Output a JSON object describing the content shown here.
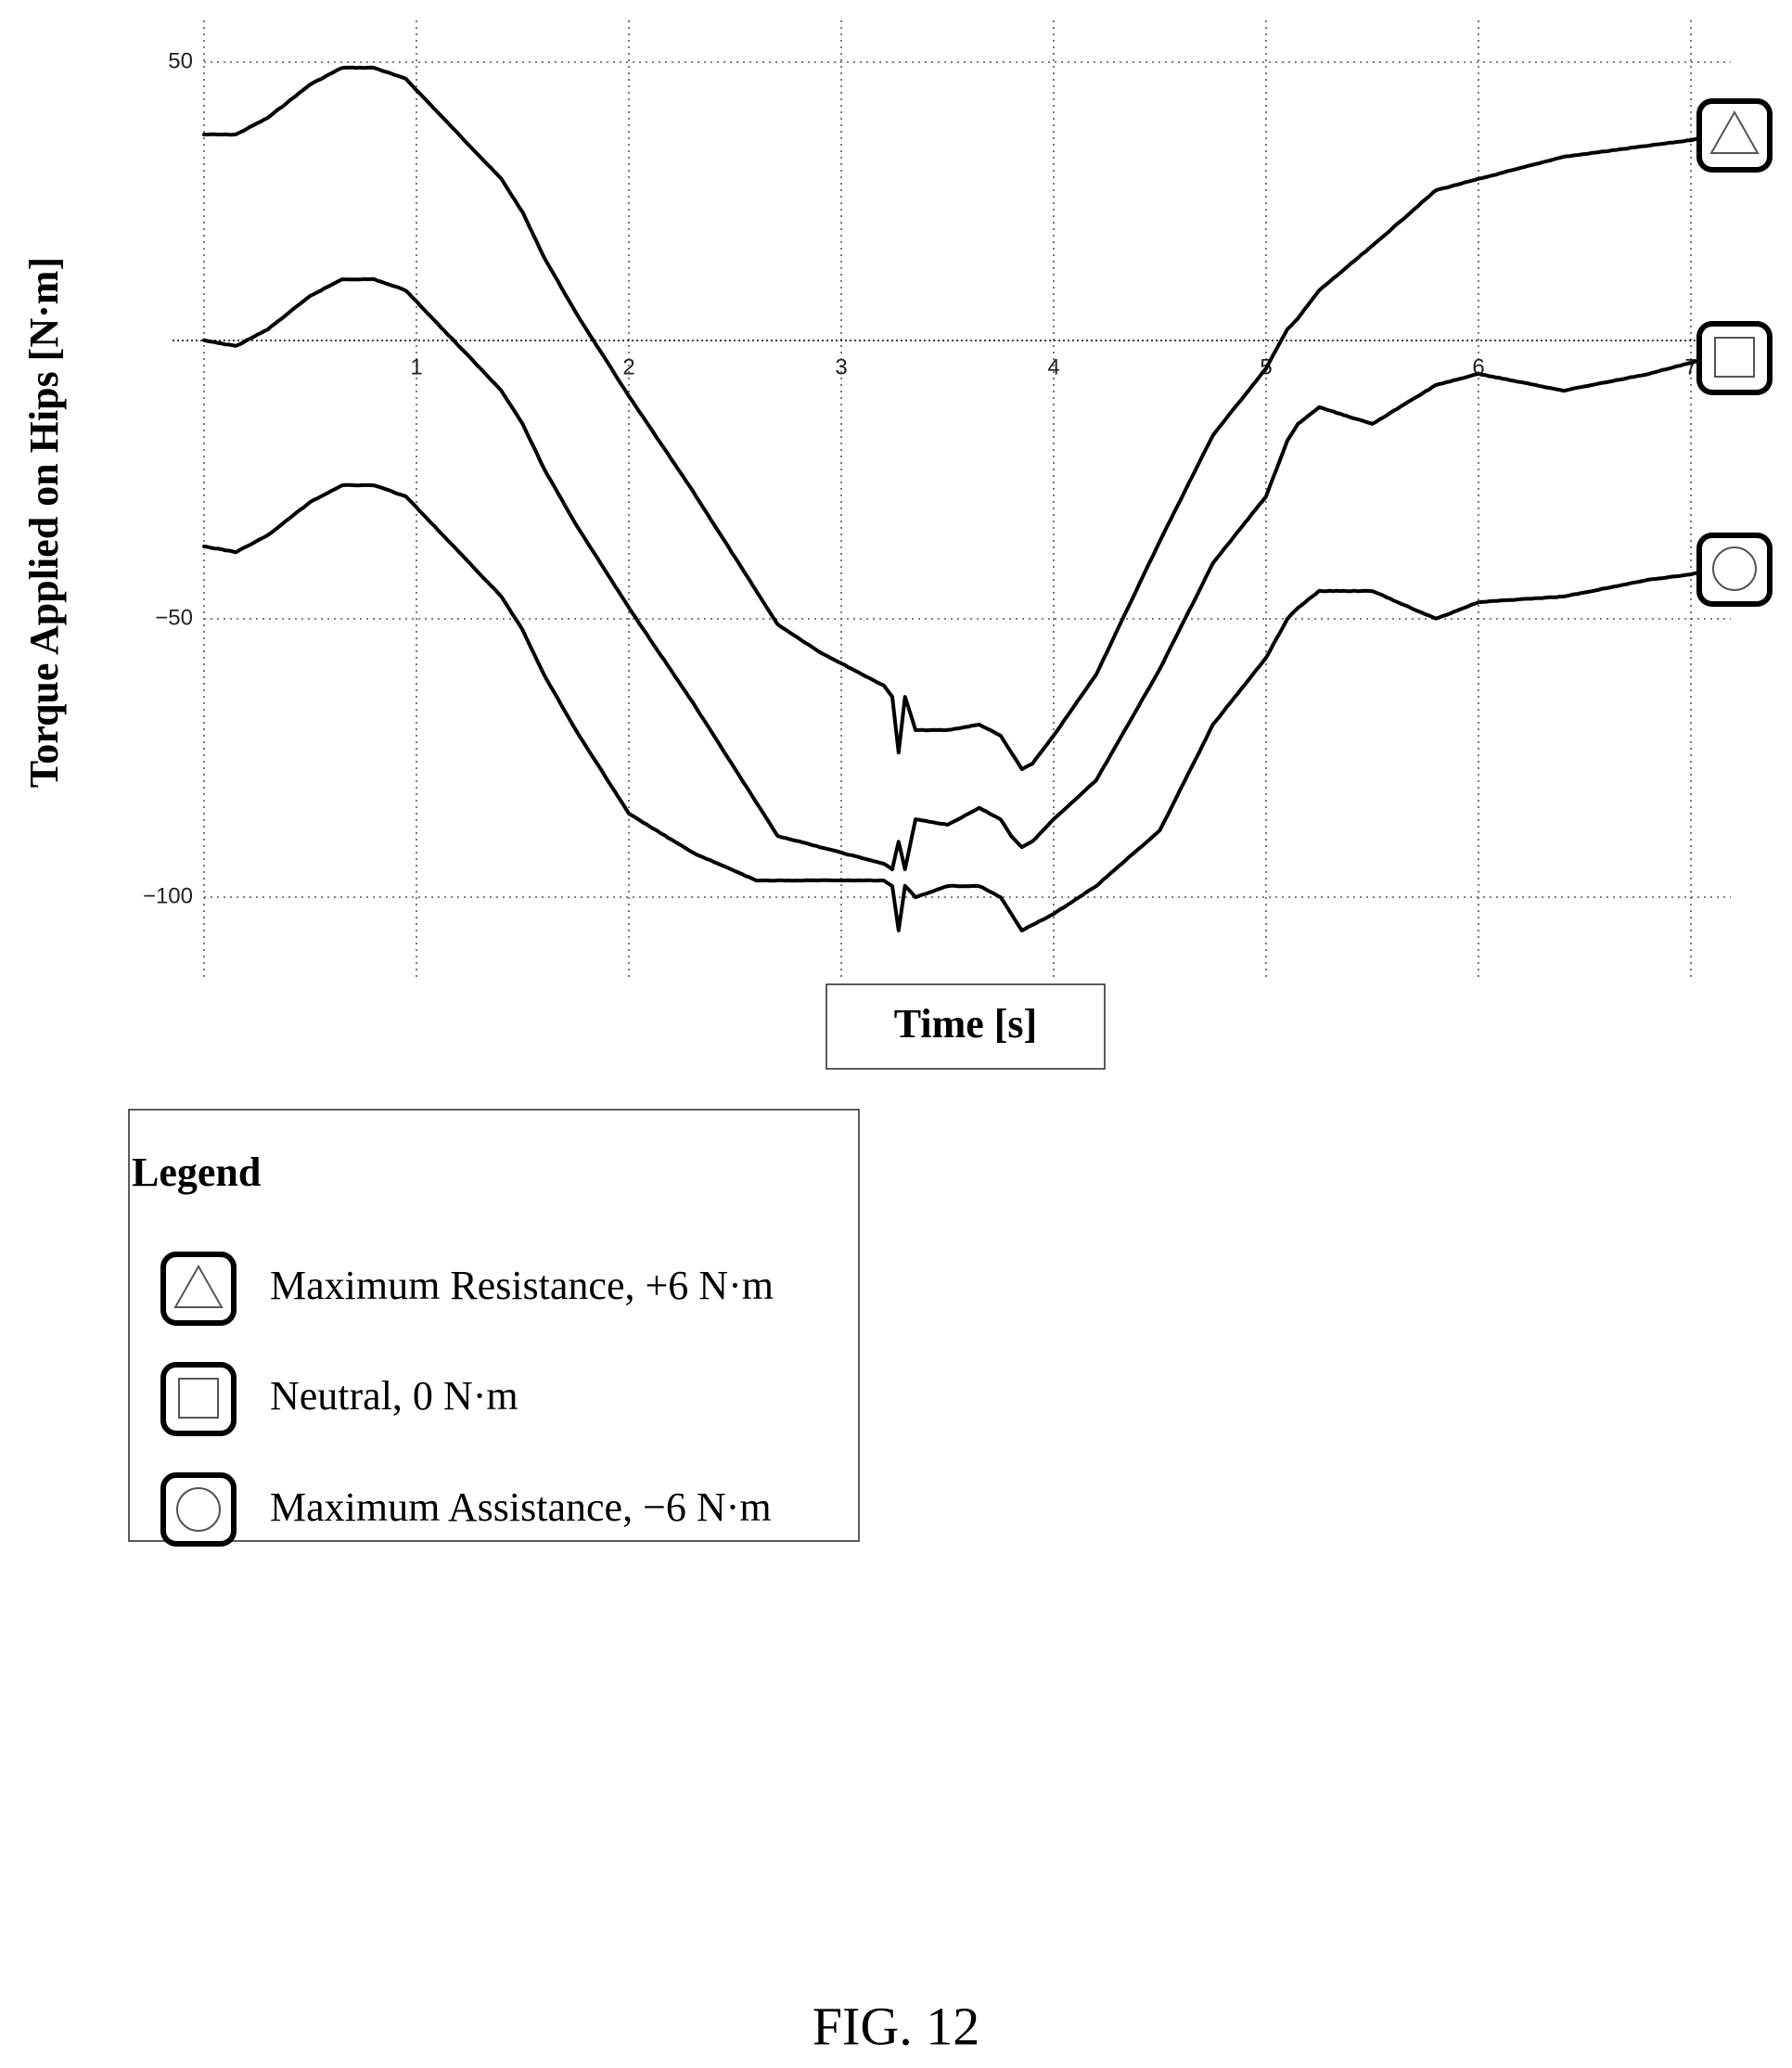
{
  "chart_data": {
    "type": "line",
    "ylabel": "Torque Applied on Hips [N·m]",
    "xlabel": "Time [s]",
    "x_ticks": [
      "1",
      "2",
      "3",
      "4",
      "5",
      "6",
      "7"
    ],
    "y_ticks": [
      "50",
      "−50",
      "−100"
    ],
    "xlim": [
      0,
      7.2
    ],
    "ylim": [
      -114,
      54
    ],
    "grid": true,
    "legend_placement": "bottom-left",
    "series": [
      {
        "name": "Maximum Resistance, +6 N·m",
        "marker": "triangle",
        "x": [
          0,
          0.15,
          0.3,
          0.5,
          0.65,
          0.8,
          0.95,
          1.05,
          1.2,
          1.4,
          1.5,
          1.6,
          1.75,
          2.0,
          2.3,
          2.6,
          2.7,
          2.9,
          3.1,
          3.2,
          3.24,
          3.27,
          3.3,
          3.35,
          3.5,
          3.65,
          3.75,
          3.8,
          3.85,
          3.9,
          4.0,
          4.2,
          4.5,
          4.75,
          5.0,
          5.1,
          5.15,
          5.25,
          5.5,
          5.8,
          6.0,
          6.4,
          6.8,
          7.0,
          7.1
        ],
        "y": [
          37,
          37,
          40,
          46,
          49,
          49,
          47,
          43,
          37,
          29,
          23,
          15,
          5,
          -10,
          -27,
          -45,
          -51,
          -56,
          -60,
          -62,
          -64,
          -74,
          -64,
          -70,
          -70,
          -69,
          -71,
          -74,
          -77,
          -76,
          -71,
          -60,
          -36,
          -17,
          -5,
          2,
          4,
          9,
          17,
          27,
          29,
          33,
          35,
          36,
          37
        ]
      },
      {
        "name": "Neutral, 0 N·m",
        "marker": "square",
        "x": [
          0,
          0.15,
          0.3,
          0.5,
          0.65,
          0.8,
          0.95,
          1.05,
          1.2,
          1.4,
          1.5,
          1.6,
          1.75,
          2.0,
          2.3,
          2.6,
          2.7,
          2.9,
          3.1,
          3.2,
          3.24,
          3.27,
          3.3,
          3.35,
          3.5,
          3.65,
          3.75,
          3.8,
          3.85,
          3.9,
          4.0,
          4.2,
          4.5,
          4.75,
          5.0,
          5.1,
          5.15,
          5.25,
          5.5,
          5.8,
          6.0,
          6.4,
          6.8,
          7.0,
          7.1
        ],
        "y": [
          0,
          -1,
          2,
          8,
          11,
          11,
          9,
          5,
          -1,
          -9,
          -15,
          -23,
          -33,
          -48,
          -65,
          -83,
          -89,
          -91,
          -93,
          -94,
          -95,
          -90,
          -95,
          -86,
          -87,
          -84,
          -86,
          -89,
          -91,
          -90,
          -86,
          -79,
          -59,
          -40,
          -28,
          -18,
          -15,
          -12,
          -15,
          -8,
          -6,
          -9,
          -6,
          -4,
          -3
        ]
      },
      {
        "name": "Maximum Assistance, −6 N·m",
        "marker": "circle",
        "x": [
          0,
          0.15,
          0.3,
          0.5,
          0.65,
          0.8,
          0.95,
          1.05,
          1.2,
          1.4,
          1.5,
          1.6,
          1.75,
          2.0,
          2.3,
          2.6,
          2.7,
          2.9,
          3.1,
          3.2,
          3.24,
          3.27,
          3.3,
          3.35,
          3.5,
          3.65,
          3.75,
          3.8,
          3.85,
          3.9,
          4.0,
          4.2,
          4.5,
          4.75,
          5.0,
          5.1,
          5.15,
          5.25,
          5.5,
          5.8,
          6.0,
          6.4,
          6.8,
          7.0,
          7.1
        ],
        "y": [
          -37,
          -38,
          -35,
          -29,
          -26,
          -26,
          -28,
          -32,
          -38,
          -46,
          -52,
          -60,
          -70,
          -85,
          -92,
          -97,
          -97,
          -97,
          -97,
          -97,
          -98,
          -106,
          -98,
          -100,
          -98,
          -98,
          -100,
          -103,
          -106,
          -105,
          -103,
          -98,
          -88,
          -69,
          -57,
          -50,
          -48,
          -45,
          -45,
          -50,
          -47,
          -46,
          -43,
          -42,
          -41
        ]
      }
    ]
  },
  "legend": {
    "title": "Legend",
    "items": [
      {
        "label": "Maximum Resistance, +6 N·m",
        "icon": "triangle-icon"
      },
      {
        "label": "Neutral, 0 N·m",
        "icon": "square-icon"
      },
      {
        "label": "Maximum Assistance, −6 N·m",
        "icon": "circle-icon"
      }
    ]
  },
  "caption": "FIG. 12"
}
